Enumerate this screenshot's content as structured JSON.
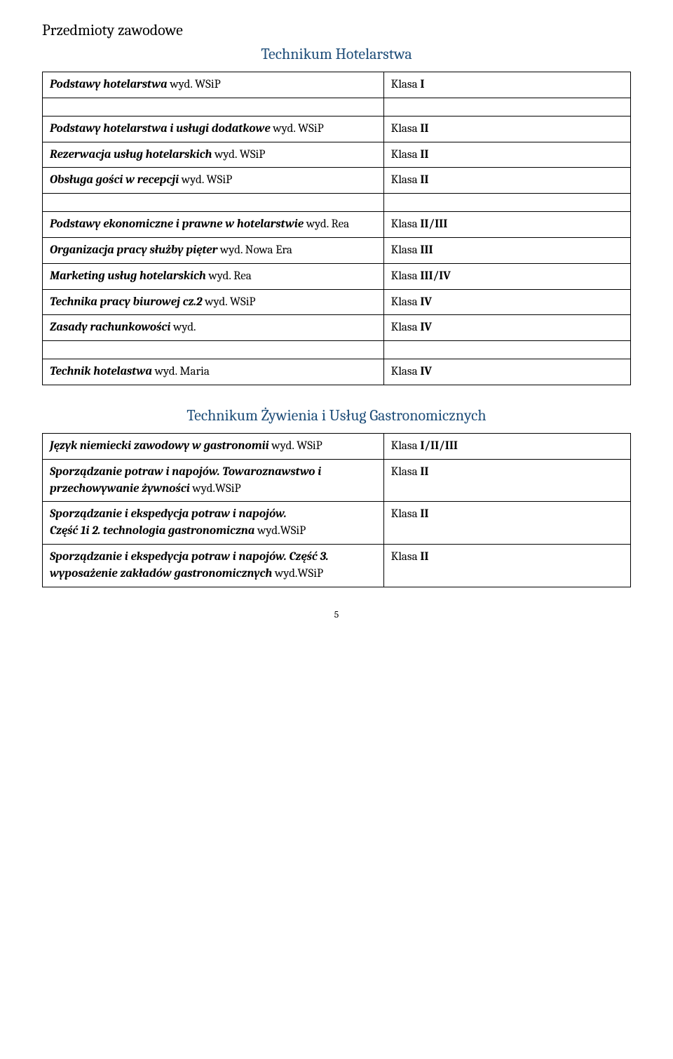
{
  "section_title": "Przedmioty zawodowe",
  "subsection1_title": "Technikum Hotelarstwa",
  "subsection2_title": "Technikum Żywienia i Usług Gastronomicznych",
  "table1": {
    "rows": [
      {
        "left_italic": "Podstawy hotelarstwa",
        "left_plain": " wyd. WSiP",
        "right_plain": "Klasa ",
        "right_bold": "I"
      },
      {
        "spacer": true
      },
      {
        "left_italic": "Podstawy hotelarstwa i usługi dodatkowe",
        "left_plain": "  wyd. WSiP",
        "right_plain": "Klasa ",
        "right_bold": "II"
      },
      {
        "left_italic": "Rezerwacja usług hotelarskich",
        "left_plain": " wyd. WSiP",
        "right_plain": "Klasa ",
        "right_bold": "II"
      },
      {
        "left_italic": "Obsługa gości w recepcji",
        "left_plain": " wyd. WSiP",
        "right_plain": "Klasa ",
        "right_bold": "II"
      },
      {
        "spacer": true
      },
      {
        "left_italic": "Podstawy ekonomiczne i prawne w hotelarstwie",
        "left_plain": " wyd. Rea",
        "right_plain": "Klasa ",
        "right_bold": "II/III"
      },
      {
        "left_italic": "Organizacja pracy służby pięter",
        "left_plain": " wyd. Nowa Era",
        "right_plain": "Klasa ",
        "right_bold": "III"
      },
      {
        "left_italic": "Marketing usług hotelarskich",
        "left_plain": " wyd. Rea",
        "right_plain": "Klasa ",
        "right_bold": "III/IV"
      },
      {
        "left_italic": "Technika pracy biurowej cz.2",
        "left_plain": " wyd. WSiP",
        "right_plain": "Klasa ",
        "right_bold": "IV"
      },
      {
        "left_italic": "Zasady rachunkowości",
        "left_plain": " wyd.",
        "right_plain": "Klasa ",
        "right_bold": "IV"
      },
      {
        "spacer": true
      },
      {
        "left_italic": "Technik hotelastwa",
        "left_plain": " wyd. Maria",
        "right_plain": "Klasa ",
        "right_bold": "IV"
      }
    ]
  },
  "table2": {
    "rows": [
      {
        "left_italic": "Język niemiecki zawodowy w gastronomii",
        "left_plain": " wyd. WSiP",
        "right_plain": "Klasa ",
        "right_bold": "I/II/III"
      },
      {
        "left_italic": "Sporządzanie potraw i napojów. Towaroznawstwo i przechowywanie żywności",
        "left_plain": " wyd.WSiP",
        "right_plain": "Klasa ",
        "right_bold": "II"
      },
      {
        "left_italic": "Sporządzanie i ekspedycja potraw i napojów.",
        "left_italic2": "Część 1i 2. technologia gastronomiczna",
        "left_plain": " wyd.WSiP",
        "right_plain": "Klasa ",
        "right_bold": "II"
      },
      {
        "left_italic": "Sporządzanie i ekspedycja potraw i napojów. Część 3. wyposażenie zakładów gastronomicznych",
        "left_plain": " wyd.WSiP",
        "right_plain": "Klasa ",
        "right_bold": "II"
      }
    ]
  },
  "page_number": "5"
}
